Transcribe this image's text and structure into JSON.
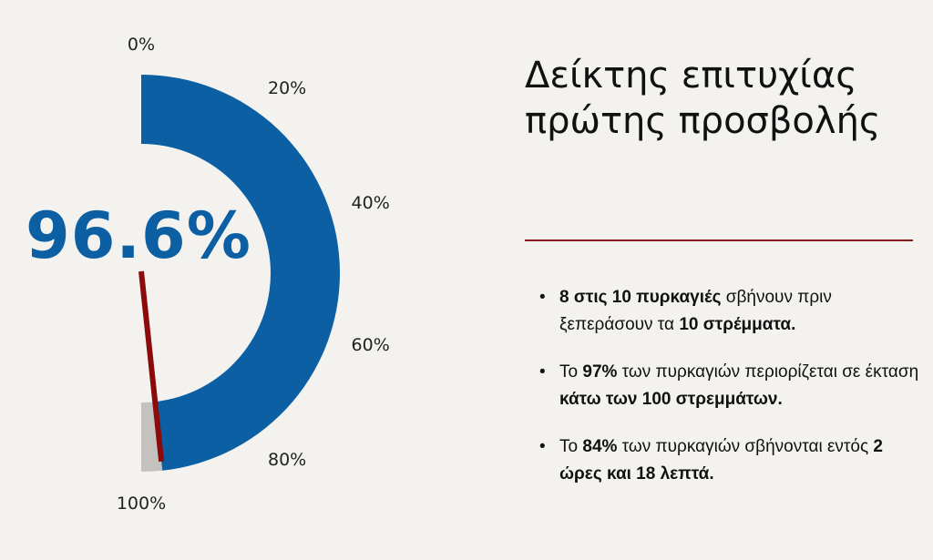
{
  "chart_data": {
    "type": "gauge",
    "value": 96.6,
    "value_label": "96.6%",
    "min": 0,
    "max": 100,
    "ticks": [
      "0%",
      "20%",
      "40%",
      "60%",
      "80%",
      "100%"
    ],
    "colors": {
      "fill": "#0d5fa3",
      "track": "#c4c2be",
      "needle": "#8b0a0a",
      "value_text": "#0d5fa3"
    }
  },
  "title": {
    "line1": "Δείκτης επιτυχίας",
    "line2": "πρώτης προσβολής"
  },
  "divider_color": "#8b1a1a",
  "bullets": [
    [
      {
        "text": "8 στις 10 πυρκαγιές",
        "bold": true
      },
      {
        "text": " σβήνουν πριν ξεπεράσουν τα ",
        "bold": false
      },
      {
        "text": "10 στρέμματα.",
        "bold": true
      }
    ],
    [
      {
        "text": "Το ",
        "bold": false
      },
      {
        "text": "97%",
        "bold": true
      },
      {
        "text": " των πυρκαγιών περιορίζεται σε έκταση ",
        "bold": false
      },
      {
        "text": "κάτω των 100 στρεμμάτων.",
        "bold": true
      }
    ],
    [
      {
        "text": "Το ",
        "bold": false
      },
      {
        "text": "84%",
        "bold": true
      },
      {
        "text": " των πυρκαγιών σβήνονται εντός ",
        "bold": false
      },
      {
        "text": "2 ώρες και 18 λεπτά.",
        "bold": true
      }
    ]
  ]
}
